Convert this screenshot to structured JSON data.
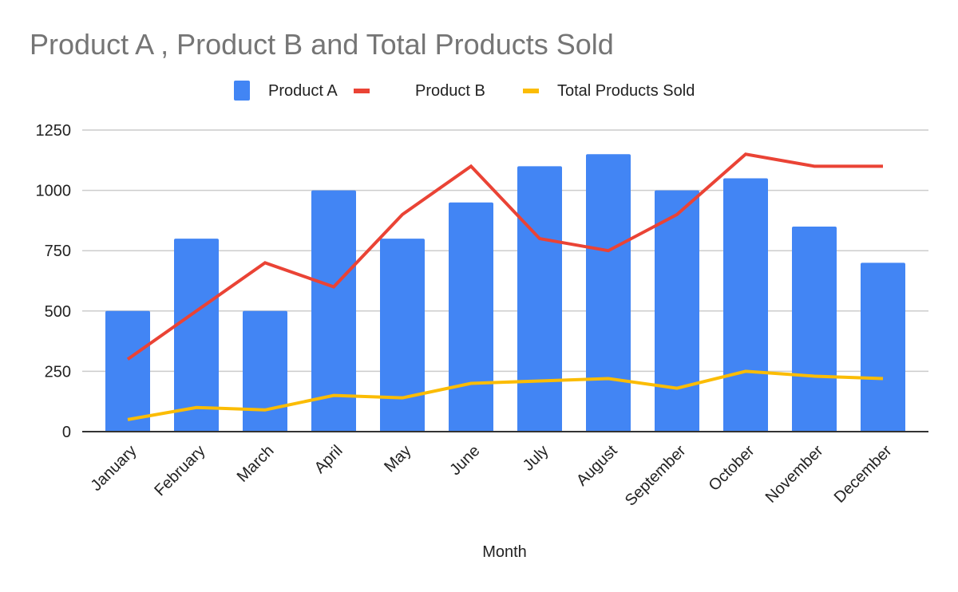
{
  "chart_data": {
    "type": "bar",
    "title": "Product A , Product B and Total Products Sold",
    "xlabel": "Month",
    "ylabel": "",
    "ylim": [
      0,
      1250
    ],
    "yticks": [
      "0",
      "250",
      "500",
      "750",
      "1000",
      "1250"
    ],
    "ytick_values": [
      0,
      250,
      500,
      750,
      1000,
      1250
    ],
    "grid": true,
    "legend_position": "top",
    "categories": [
      "January",
      "February",
      "March",
      "April",
      "May",
      "June",
      "July",
      "August",
      "September",
      "October",
      "November",
      "December"
    ],
    "series": [
      {
        "name": "Product A",
        "type": "bar",
        "color": "#4285f4",
        "values": [
          500,
          800,
          500,
          1000,
          800,
          950,
          1100,
          1150,
          1000,
          1050,
          850,
          700
        ]
      },
      {
        "name": "Product B",
        "type": "line",
        "color": "#ea4335",
        "values": [
          300,
          500,
          700,
          600,
          900,
          1100,
          800,
          750,
          900,
          1150,
          1100,
          1100
        ]
      },
      {
        "name": "Total Products Sold",
        "type": "line",
        "color": "#fbbc04",
        "values": [
          50,
          100,
          90,
          150,
          140,
          200,
          210,
          220,
          180,
          250,
          230,
          220
        ]
      }
    ]
  }
}
